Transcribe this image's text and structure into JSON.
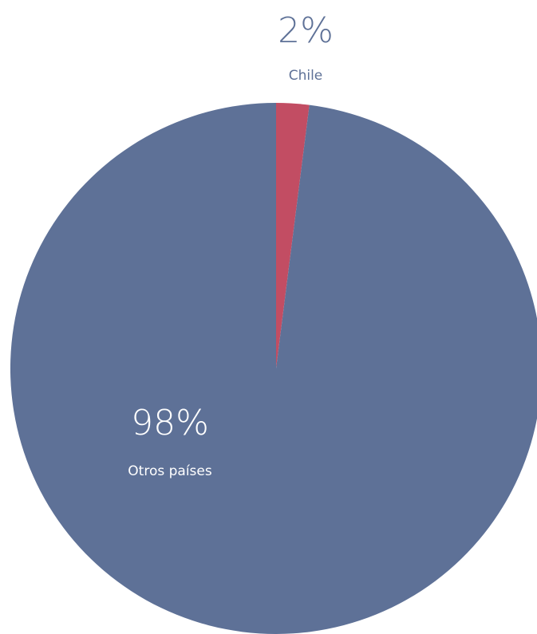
{
  "chart_data": {
    "type": "pie",
    "start_angle_deg": 0,
    "direction": "clockwise",
    "slices": [
      {
        "label": "Chile",
        "value": 2,
        "value_label": "2%",
        "color": "#C24D63",
        "label_position": "outside-top",
        "label_color": "#5E7197"
      },
      {
        "label": "Otros países",
        "value": 98,
        "value_label": "98%",
        "color": "#5E7197",
        "label_position": "inside",
        "label_color": "#FFFFFF"
      }
    ]
  }
}
